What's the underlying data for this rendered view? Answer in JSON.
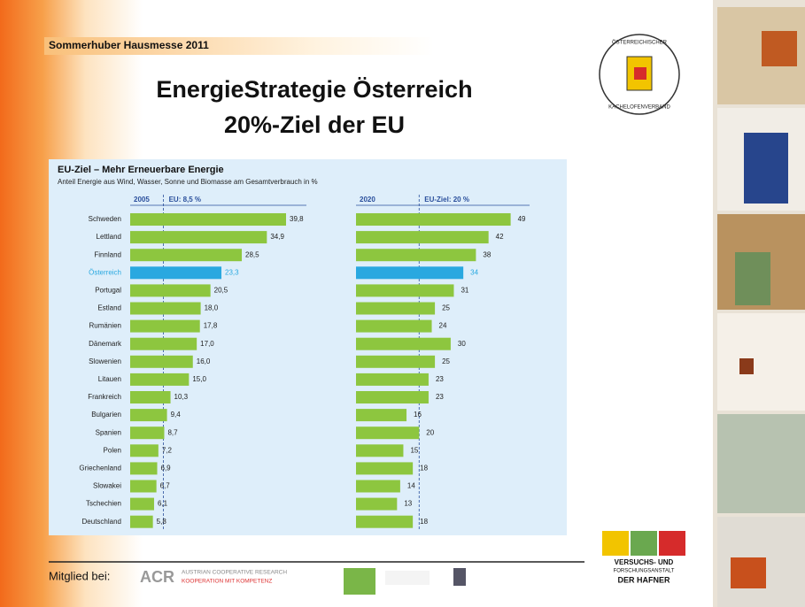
{
  "header": {
    "event": "Sommerhuber Hausmesse  2011",
    "title_lines": [
      "EnergieStrategie Österreich",
      "20%-Ziel der EU"
    ]
  },
  "badge": {
    "top": "ÖSTERREICHISCHER",
    "bottom": "KACHELOFENVERBAND"
  },
  "chart_data": [
    {
      "type": "bar",
      "orientation": "horizontal",
      "title": "EU-Ziel – Mehr Erneuerbare Energie",
      "subtitle": "Anteil Energie aus Wind, Wasser, Sonne und Biomasse am Gesamtverbrauch in %",
      "period": "2005",
      "reference": {
        "value": 8.5,
        "label": "EU: 8,5 %"
      },
      "categories": [
        "Schweden",
        "Lettland",
        "Finnland",
        "Österreich",
        "Portugal",
        "Estland",
        "Rumänien",
        "Dänemark",
        "Slowenien",
        "Litauen",
        "Frankreich",
        "Bulgarien",
        "Spanien",
        "Polen",
        "Griechenland",
        "Slowakei",
        "Tschechien",
        "Deutschland"
      ],
      "values": [
        39.8,
        34.9,
        28.5,
        23.3,
        20.5,
        18.0,
        17.8,
        17.0,
        16.0,
        15.0,
        10.3,
        9.4,
        8.7,
        7.2,
        6.9,
        6.7,
        6.1,
        5.8
      ],
      "value_labels": [
        "39,8",
        "34,9",
        "28,5",
        "23,3",
        "20,5",
        "18,0",
        "17,8",
        "17,0",
        "16,0",
        "15,0",
        "10,3",
        "9,4",
        "8,7",
        "7,2",
        "6,9",
        "6,7",
        "6,1",
        "5,8"
      ],
      "color": "#8dc63f",
      "highlight": "Österreich",
      "highlight_color": "#29a8e0",
      "xlim": [
        0,
        45
      ]
    },
    {
      "type": "bar",
      "orientation": "horizontal",
      "period": "2020",
      "reference": {
        "value": 20,
        "label": "EU-Ziel: 20 %"
      },
      "values": [
        49,
        42,
        38,
        34,
        31,
        25,
        24,
        30,
        25,
        23,
        23,
        16,
        20,
        15,
        18,
        14,
        13,
        18
      ],
      "color": "#8dc63f",
      "highlight_index": 3,
      "highlight_color": "#29a8e0",
      "xlim": [
        0,
        55
      ]
    }
  ],
  "footer": {
    "member": "Mitglied bei:",
    "acr_name": "AUSTRIAN COOPERATIVE RESEARCH",
    "acr_slogan": "KOOPERATION MIT KOMPETENZ",
    "vfh_lines": [
      "VERSUCHS- UND",
      "FORSCHUNGSANSTALT",
      "DER HAFNER"
    ]
  }
}
